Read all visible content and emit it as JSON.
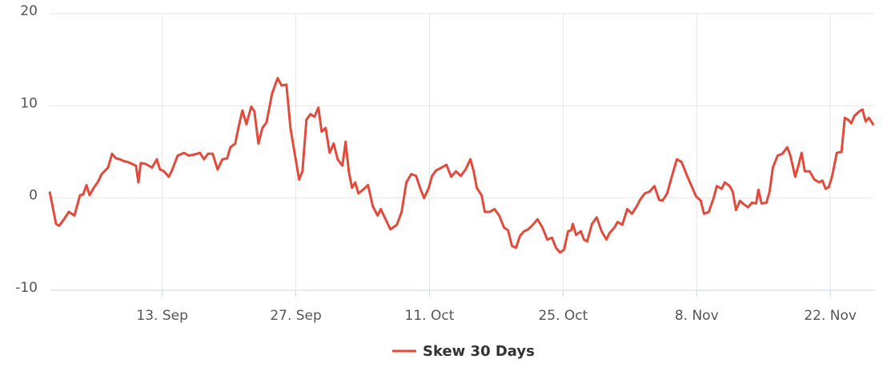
{
  "chart_data": {
    "type": "line",
    "x": [
      1.2,
      1.45,
      1.87,
      2.2,
      2.71,
      3.21,
      3.8,
      4.38,
      4.72,
      5.06,
      5.39,
      5.81,
      6.23,
      6.65,
      7.32,
      7.74,
      8.16,
      8.57,
      8.99,
      9.41,
      9.83,
      10.25,
      10.5,
      10.75,
      11.26,
      11.93,
      12.43,
      12.76,
      13.18,
      13.69,
      14.02,
      14.61,
      15.28,
      15.78,
      16.28,
      16.95,
      17.37,
      17.79,
      18.29,
      18.8,
      19.3,
      19.8,
      20.14,
      20.64,
      20.98,
      21.4,
      21.82,
      22.32,
      22.66,
      23.08,
      23.5,
      23.92,
      24.5,
      25.09,
      25.51,
      26.01,
      26.43,
      26.85,
      27.35,
      27.69,
      28.11,
      28.53,
      28.95,
      29.36,
      29.7,
      30.12,
      30.54,
      30.96,
      31.38,
      31.88,
      32.21,
      32.55,
      32.88,
      33.22,
      33.55,
      34.14,
      34.56,
      35.06,
      35.57,
      35.9,
      36.4,
      36.91,
      37.58,
      38.08,
      38.58,
      39.09,
      39.59,
      40.09,
      40.43,
      40.93,
      41.27,
      41.69,
      42.27,
      42.78,
      43.28,
      43.78,
      44.28,
      44.79,
      45.29,
      45.63,
      45.96,
      46.46,
      46.8,
      47.3,
      47.81,
      48.31,
      48.81,
      49.23,
      49.65,
      50.07,
      50.49,
      50.91,
      51.33,
      51.75,
      52.33,
      52.84,
      53.34,
      53.84,
      54.26,
      54.68,
      55.1,
      55.52,
      55.85,
      56.02,
      56.36,
      56.86,
      57.19,
      57.53,
      58.03,
      58.53,
      59.04,
      59.54,
      59.87,
      60.38,
      60.71,
      61.21,
      61.72,
      62.22,
      62.72,
      63.06,
      63.56,
      64.07,
      64.57,
      65.07,
      65.41,
      65.91,
      66.41,
      66.92,
      67.42,
      67.92,
      68.42,
      68.93,
      69.43,
      69.76,
      70.27,
      70.77,
      71.11,
      71.61,
      71.95,
      72.45,
      72.78,
      73.12,
      73.54,
      73.96,
      74.38,
      74.8,
      75.22,
      75.47,
      75.8,
      76.31,
      76.64,
      76.98,
      77.48,
      77.98,
      78.48,
      78.82,
      79.32,
      79.66,
      79.99,
      80.33,
      80.83,
      81.33,
      81.84,
      82.17,
      82.51,
      82.84,
      83.18,
      83.68,
      84.18,
      84.52,
      84.86,
      85.19,
      85.53,
      86.03,
      86.37,
      86.7,
      87.04,
      87.54
    ],
    "series": [
      {
        "name": "Skew 30 Days",
        "color": "#e24a3b",
        "values": [
          0.7,
          -0.6,
          -2.8,
          -3.0,
          -2.3,
          -1.5,
          -1.9,
          0.3,
          0.4,
          1.4,
          0.3,
          1.1,
          1.7,
          2.6,
          3.3,
          4.8,
          4.3,
          4.2,
          4.0,
          3.9,
          3.7,
          3.5,
          1.7,
          3.8,
          3.7,
          3.3,
          4.2,
          3.1,
          2.9,
          2.3,
          3.0,
          4.6,
          4.9,
          4.6,
          4.7,
          4.9,
          4.2,
          4.8,
          4.8,
          3.1,
          4.2,
          4.3,
          5.5,
          5.9,
          7.6,
          9.5,
          8.0,
          9.9,
          9.4,
          5.9,
          7.6,
          8.2,
          11.3,
          13.0,
          12.2,
          12.3,
          7.6,
          5.0,
          2.0,
          2.9,
          8.5,
          9.1,
          8.8,
          9.8,
          7.2,
          7.6,
          4.9,
          5.9,
          4.2,
          3.5,
          6.1,
          2.9,
          1.1,
          1.7,
          0.5,
          1.0,
          1.4,
          -0.9,
          -1.9,
          -1.2,
          -2.3,
          -3.4,
          -2.9,
          -1.5,
          1.7,
          2.6,
          2.4,
          0.9,
          0.0,
          1.1,
          2.4,
          3.0,
          3.3,
          3.6,
          2.3,
          2.9,
          2.4,
          3.1,
          4.2,
          2.9,
          1.1,
          0.3,
          -1.5,
          -1.5,
          -1.2,
          -1.9,
          -3.2,
          -3.5,
          -5.2,
          -5.4,
          -4.1,
          -3.6,
          -3.4,
          -3.0,
          -2.3,
          -3.2,
          -4.5,
          -4.3,
          -5.4,
          -5.9,
          -5.6,
          -3.6,
          -3.5,
          -2.8,
          -4.0,
          -3.6,
          -4.5,
          -4.7,
          -2.8,
          -2.1,
          -3.6,
          -4.5,
          -3.8,
          -3.2,
          -2.6,
          -2.9,
          -1.2,
          -1.7,
          -0.9,
          -0.2,
          0.5,
          0.7,
          1.3,
          -0.2,
          -0.3,
          0.5,
          2.4,
          4.2,
          3.9,
          2.6,
          1.4,
          0.2,
          -0.3,
          -1.7,
          -1.5,
          0.0,
          1.3,
          1.0,
          1.7,
          1.3,
          0.7,
          -1.3,
          -0.3,
          -0.7,
          -1.0,
          -0.5,
          -0.6,
          0.9,
          -0.6,
          -0.5,
          0.7,
          3.3,
          4.6,
          4.8,
          5.5,
          4.6,
          2.3,
          3.5,
          4.9,
          2.9,
          2.9,
          2.0,
          1.7,
          1.9,
          1.0,
          1.2,
          2.3,
          4.9,
          5.0,
          8.7,
          8.5,
          8.1,
          8.9,
          9.4,
          9.6,
          8.3,
          8.7,
          7.9
        ]
      }
    ],
    "xlim": [
      1.2,
      87.6
    ],
    "xticks": [
      {
        "value": 13,
        "label": "13. Sep"
      },
      {
        "value": 27,
        "label": "27. Sep"
      },
      {
        "value": 41,
        "label": "11. Oct"
      },
      {
        "value": 55,
        "label": "25. Oct"
      },
      {
        "value": 69,
        "label": "8. Nov"
      },
      {
        "value": 83,
        "label": "22. Nov"
      }
    ],
    "ylim": [
      -10,
      20
    ],
    "yticks": [
      -10,
      0,
      10,
      20
    ],
    "grid": true,
    "legend": "bottom"
  }
}
